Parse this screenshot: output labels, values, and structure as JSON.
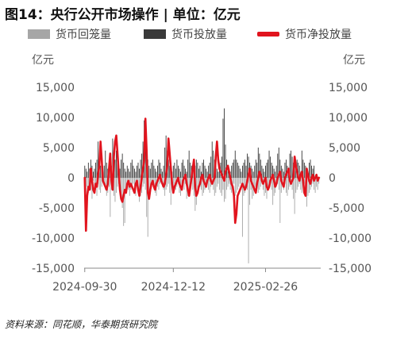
{
  "title": "图14：央行公开市场操作 | 单位：亿元",
  "source": "资料来源：同花顺，华泰期货研究院",
  "chart_data": {
    "type": "bar",
    "title": "图14：央行公开市场操作 | 单位：亿元",
    "unit_left": "亿元",
    "unit_right": "亿元",
    "ylim": [
      -15000,
      15000
    ],
    "yticks": [
      "15,000",
      "10,000",
      "5,000",
      "0",
      "-5,000",
      "-10,000",
      "-15,000"
    ],
    "ytick_values": [
      15000,
      10000,
      5000,
      0,
      -5000,
      -10000,
      -15000
    ],
    "xticks": [
      "2024-09-30",
      "2024-12-12",
      "2025-02-26"
    ],
    "xtick_positions": [
      0,
      73,
      149
    ],
    "x_count": 195,
    "colors": {
      "repo": "#a6a6a6",
      "inject": "#3a3a3a",
      "net": "#e1141e"
    },
    "legend": [
      "货币回笼量",
      "货币投放量",
      "货币净投放量"
    ],
    "series": [
      {
        "name": "货币回笼量",
        "type": "bar",
        "values": [
          -2000,
          -3000,
          -1500,
          -2500,
          -1000,
          -2000,
          -3500,
          -500,
          -1500,
          -2000,
          -3000,
          -1000,
          -2000,
          -2500,
          -1500,
          -500,
          -1000,
          -2000,
          -3000,
          -2500,
          -1500,
          -6500,
          -2000,
          -1000,
          -3000,
          -4000,
          -2500,
          -1500,
          -1000,
          -2000,
          -3500,
          -5000,
          -8000,
          -7500,
          -2500,
          -1500,
          -2000,
          -3000,
          -2000,
          -1500,
          -1000,
          -2500,
          -3000,
          -1500,
          -2000,
          -4000,
          -3000,
          -2500,
          -1500,
          -1000,
          -2000,
          -6500,
          -9800,
          -3000,
          -2000,
          -1500,
          -1000,
          -2000,
          -2500,
          -3000,
          -1500,
          -2000,
          -1000,
          -500,
          -1500,
          -2000,
          -3000,
          -2000,
          -1500,
          -1000,
          -2500,
          -4500,
          -2000,
          -1500,
          -1000,
          -2000,
          -1500,
          -1000,
          -2500,
          -3000,
          -2000,
          -1500,
          -2000,
          -1000,
          -3500,
          -3000,
          -2000,
          -1500,
          -1000,
          -2000,
          -3000,
          -5500,
          -4500,
          -2500,
          -2000,
          -1500,
          -2000,
          -3000,
          -2500,
          -2000,
          -1500,
          -1000,
          -2000,
          -2500,
          -1500,
          -1000,
          -2000,
          -3000,
          -2500,
          -1500,
          -1000,
          -2000,
          -2500,
          -3000,
          -2000,
          -4000,
          -3500,
          -2000,
          -1500,
          -1000,
          -2000,
          -2500,
          -1500,
          -1000,
          -3000,
          -2500,
          -2000,
          -1500,
          -1000,
          -2000,
          -9800,
          -3000,
          -2500,
          -1500,
          -2000,
          -14200,
          -4500,
          -2000,
          -3500,
          -3000,
          -2000,
          -1500,
          -1000,
          -2500,
          -2000,
          -1500,
          -1000,
          -2000,
          -3000,
          -2500,
          -3500,
          -2000,
          -1500,
          -1000,
          -2000,
          -4500,
          -3000,
          -2500,
          -1500,
          -1000,
          -2000,
          -7500,
          -2500,
          -1500,
          -2000,
          -1000,
          -2500,
          -3000,
          -2000,
          -1500,
          -1000,
          -2000,
          -3500,
          -6000,
          -2500,
          -2000,
          -1500,
          -1000,
          -2000,
          -2500,
          -1500,
          -1000,
          -2000,
          -4800,
          -3000,
          -2500,
          -2000,
          -1500,
          -1000,
          -2000,
          -2500,
          -1500,
          -2000,
          -1000
        ],
        "color": "#a6a6a6"
      },
      {
        "name": "货币投放量",
        "type": "bar",
        "values": [
          2000,
          1500,
          1000,
          2500,
          1500,
          3000,
          2000,
          1000,
          1500,
          2500,
          3000,
          6000,
          3500,
          2000,
          1500,
          1000,
          2000,
          4500,
          2500,
          1500,
          1000,
          3000,
          2000,
          6500,
          5000,
          3000,
          4500,
          3500,
          2000,
          1500,
          3000,
          4000,
          2500,
          1500,
          1000,
          2000,
          1500,
          1000,
          2500,
          3000,
          2000,
          1500,
          1000,
          2000,
          2500,
          1500,
          3000,
          4000,
          6000,
          9500,
          5500,
          4000,
          3000,
          2000,
          1500,
          2500,
          3000,
          2000,
          1500,
          1000,
          2000,
          3000,
          2500,
          1500,
          1000,
          2000,
          5000,
          7000,
          4500,
          3000,
          2000,
          1500,
          1000,
          2000,
          2500,
          1500,
          3000,
          2000,
          1500,
          1000,
          2500,
          3000,
          2000,
          1500,
          1000,
          3000,
          4500,
          2500,
          2000,
          1500,
          1000,
          2000,
          3000,
          2500,
          1500,
          2000,
          1000,
          2500,
          3000,
          2000,
          1500,
          1000,
          2000,
          2500,
          3500,
          6000,
          4500,
          3000,
          2000,
          1500,
          1000,
          2000,
          2500,
          3500,
          9800,
          11500,
          5500,
          3000,
          2000,
          1500,
          1000,
          2000,
          2500,
          3000,
          4500,
          3000,
          2500,
          2000,
          1500,
          1000,
          2000,
          2500,
          3000,
          2000,
          4000,
          3500,
          2500,
          2000,
          1500,
          1000,
          2000,
          3000,
          2500,
          5000,
          4000,
          3000,
          2000,
          1500,
          1000,
          2000,
          2500,
          3000,
          4500,
          3500,
          2500,
          2000,
          1500,
          1000,
          2000,
          4000,
          5000,
          3000,
          2000,
          1500,
          1000,
          2500,
          3000,
          2000,
          1500,
          4000,
          4500,
          3500,
          2500,
          2000,
          1500,
          3000,
          2500,
          2000,
          1000,
          4500,
          3000,
          2500,
          2000,
          1500,
          1000,
          2500,
          3000,
          2000,
          1500,
          2000
        ],
        "color": "#3a3a3a"
      },
      {
        "name": "货币净投放量",
        "type": "line",
        "values": [
          0,
          -8800,
          -3000,
          -1500,
          -2000,
          1500,
          -500,
          -2000,
          -2500,
          -1000,
          -1500,
          500,
          2000,
          6000,
          3000,
          -500,
          -1000,
          -1500,
          -2000,
          -1000,
          1500,
          4000,
          -500,
          -2000,
          3500,
          6000,
          7000,
          4000,
          1000,
          -2000,
          -3500,
          -4000,
          -3000,
          -2000,
          -2500,
          -1000,
          -500,
          -1500,
          -1000,
          -1500,
          -2000,
          -2500,
          -1000,
          -500,
          -2000,
          -3000,
          -1500,
          0,
          1500,
          3000,
          9800,
          4500,
          -2500,
          -3500,
          -2000,
          -1000,
          -500,
          -1500,
          -2000,
          -1000,
          -500,
          0,
          500,
          -500,
          -1000,
          -1500,
          -1000,
          500,
          2000,
          6500,
          4000,
          1500,
          -1000,
          -2500,
          -1500,
          -1000,
          -500,
          0,
          -1000,
          -1500,
          -2000,
          -500,
          0,
          500,
          -1000,
          -2000,
          -3000,
          -1500,
          0,
          1500,
          3000,
          -1500,
          -3000,
          -2500,
          -1500,
          -1000,
          0,
          500,
          -500,
          -1000,
          -1500,
          -500,
          0,
          500,
          -500,
          -1000,
          -500,
          0,
          3500,
          6000,
          3000,
          1500,
          1000,
          500,
          0,
          -500,
          1000,
          1500,
          2000,
          1000,
          0,
          -1000,
          -1500,
          -3000,
          -7500,
          -6000,
          -3000,
          -2500,
          -2000,
          -1500,
          -1000,
          -1500,
          -2000,
          -1500,
          -500,
          500,
          1500,
          -500,
          -1000,
          -1500,
          -2000,
          -2500,
          -1000,
          0,
          1000,
          500,
          -500,
          -1000,
          -500,
          0,
          -1500,
          -2000,
          -1500,
          -500,
          0,
          500,
          -500,
          -1500,
          -1000,
          0,
          500,
          1000,
          -500,
          -1000,
          -1500,
          0,
          500,
          1000,
          1500,
          -500,
          -1000,
          -500,
          0,
          3500,
          2000,
          1000,
          0,
          -500,
          500,
          1000,
          -500,
          -2500,
          -3000,
          1500,
          500,
          -500,
          -1000,
          0,
          500,
          -500,
          0,
          500,
          -500,
          0
        ],
        "color": "#e1141e"
      }
    ]
  }
}
